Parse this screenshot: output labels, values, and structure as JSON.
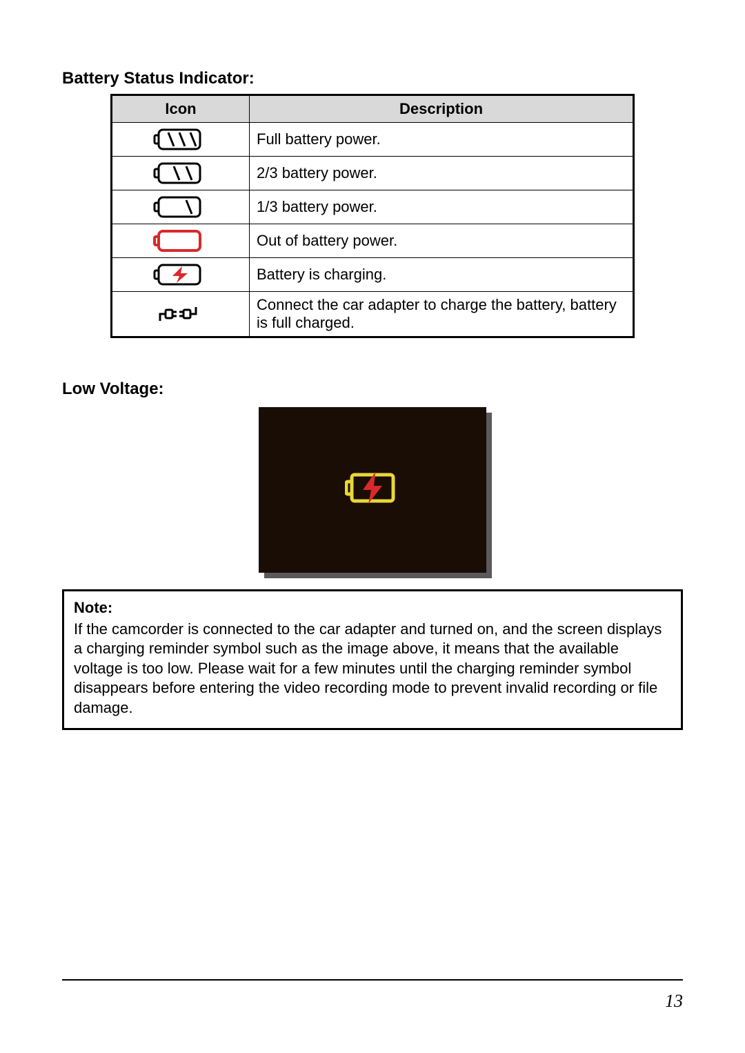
{
  "section_title": "Battery Status Indicator:",
  "table": {
    "header_icon": "Icon",
    "header_desc": "Description",
    "rows": [
      {
        "icon": "battery-full",
        "desc": "Full battery power."
      },
      {
        "icon": "battery-2-3",
        "desc": "2/3 battery power."
      },
      {
        "icon": "battery-1-3",
        "desc": "1/3 battery power."
      },
      {
        "icon": "battery-empty",
        "desc": "Out of battery power."
      },
      {
        "icon": "battery-charging",
        "desc": "Battery is charging."
      },
      {
        "icon": "plug-connected",
        "desc": "Connect the car adapter to charge the battery, battery is full charged."
      }
    ]
  },
  "low_voltage_title": "Low Voltage:",
  "note": {
    "label": "Note:",
    "text": "If the camcorder is connected to the car adapter and turned on, and the screen displays a charging reminder symbol such as the image above, it means that the available voltage is too low. Please wait for a few minutes until the charging reminder symbol disappears before entering the video recording mode to prevent invalid recording or file damage."
  },
  "page_number": "13",
  "colors": {
    "red": "#d9292b",
    "yellow": "#e8d837",
    "header_bg": "#d9d9d9",
    "screen_bg": "#1a0d05",
    "shadow": "#5a5a5a",
    "black": "#000000"
  },
  "icon_svgs": {
    "battery-full": "<svg class='batt' width='80' height='40' viewBox='0 0 80 40'><rect x='8' y='6' width='60' height='28' rx='6' fill='none' stroke='#000' stroke-width='3'/><rect x='2' y='14' width='6' height='12' rx='2' fill='none' stroke='#000' stroke-width='3'/><line x1='22' y1='10' x2='30' y2='30' stroke='#000' stroke-width='3'/><line x1='38' y1='10' x2='46' y2='30' stroke='#000' stroke-width='3'/><line x1='54' y1='10' x2='62' y2='30' stroke='#000' stroke-width='3'/></svg>",
    "battery-2-3": "<svg class='batt' width='80' height='40' viewBox='0 0 80 40'><rect x='8' y='6' width='60' height='28' rx='6' fill='none' stroke='#000' stroke-width='3'/><rect x='2' y='14' width='6' height='12' rx='2' fill='none' stroke='#000' stroke-width='3'/><line x1='30' y1='10' x2='38' y2='30' stroke='#000' stroke-width='3'/><line x1='48' y1='10' x2='56' y2='30' stroke='#000' stroke-width='3'/></svg>",
    "battery-1-3": "<svg class='batt' width='80' height='40' viewBox='0 0 80 40'><rect x='8' y='6' width='60' height='28' rx='6' fill='none' stroke='#000' stroke-width='3'/><rect x='2' y='14' width='6' height='12' rx='2' fill='none' stroke='#000' stroke-width='3'/><line x1='48' y1='10' x2='56' y2='30' stroke='#000' stroke-width='3'/></svg>",
    "battery-empty": "<svg class='batt' width='80' height='40' viewBox='0 0 80 40'><rect x='8' y='6' width='60' height='28' rx='6' fill='none' stroke='#d9292b' stroke-width='4'/><rect x='2' y='14' width='6' height='12' rx='2' fill='none' stroke='#d9292b' stroke-width='4'/></svg>",
    "battery-charging": "<svg class='batt' width='80' height='40' viewBox='0 0 80 40'><rect x='8' y='6' width='60' height='28' rx='6' fill='none' stroke='#000' stroke-width='3'/><rect x='2' y='14' width='6' height='12' rx='2' fill='none' stroke='#000' stroke-width='3'/><polygon points='42,8 28,22 38,22 34,32 50,18 40,18' fill='#d9292b'/></svg>",
    "plug-connected": "<svg class='batt' width='80' height='40' viewBox='0 0 80 40'><g stroke='#000' stroke-width='3' fill='none'><path d='M 10 30 L 10 20 L 18 20'/><rect x='18' y='14' width='10' height='12' rx='2'/><line x1='28' y1='17' x2='34' y2='17'/><line x1='28' y1='23' x2='34' y2='23'/><line x1='38' y1='17' x2='44' y2='17'/><line x1='38' y1='23' x2='44' y2='23'/><rect x='44' y='14' width='10' height='12' rx='2'/><path d='M 54 20 L 62 20 L 62 10'/></g></svg>",
    "low-voltage-large": "<svg width='80' height='55' viewBox='0 0 80 55'><rect x='10' y='8' width='60' height='38' rx='4' fill='none' stroke='#e8d837' stroke-width='5'/><rect x='2' y='18' width='8' height='18' rx='2' fill='none' stroke='#e8d837' stroke-width='5'/><polygon points='44,4 26,30 38,30 34,50 54,24 42,24' fill='#d9292b'/></svg>"
  }
}
